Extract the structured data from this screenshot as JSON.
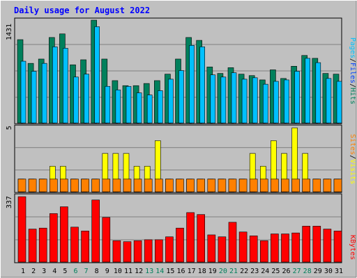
{
  "title": "Daily usage for August 2022",
  "colors": {
    "background": "#c0c0c0",
    "panel": "#c0c0c0",
    "title": "#0000ff",
    "hits": "#008040",
    "hits_fill": "#00805c",
    "files": "#0040ff",
    "files_fill": "#00c0ff",
    "pages": "#00c0ff",
    "visits": "#ffff00",
    "sites": "#ff8000",
    "kbytes": "#ff0000",
    "weekday_label": "#000000",
    "weekend_label": "#00805c",
    "gridline": "#808080"
  },
  "chart_data": [
    {
      "type": "bar",
      "panel": "top",
      "max_label": "1431",
      "ylim": [
        0,
        1431
      ],
      "categories": [
        "1",
        "2",
        "3",
        "4",
        "5",
        "6",
        "7",
        "8",
        "9",
        "10",
        "11",
        "12",
        "13",
        "14",
        "15",
        "16",
        "17",
        "18",
        "19",
        "20",
        "21",
        "22",
        "23",
        "24",
        "25",
        "26",
        "27",
        "28",
        "29",
        "30",
        "31"
      ],
      "weekend_days": [
        6,
        7,
        13,
        14,
        20,
        21,
        27,
        28
      ],
      "legend": {
        "hits": "Hits",
        "files": "Files",
        "pages": "Pages",
        "sep": "/"
      },
      "series": [
        {
          "name": "Hits",
          "values": [
            1160,
            830,
            890,
            1190,
            1240,
            810,
            880,
            1431,
            890,
            590,
            520,
            520,
            550,
            590,
            680,
            890,
            1190,
            1150,
            780,
            690,
            770,
            680,
            660,
            600,
            740,
            620,
            790,
            940,
            900,
            690,
            680
          ]
        },
        {
          "name": "Files",
          "values": [
            860,
            720,
            830,
            1060,
            1040,
            640,
            680,
            1340,
            510,
            460,
            510,
            420,
            390,
            450,
            610,
            730,
            1080,
            1060,
            670,
            640,
            700,
            610,
            630,
            540,
            580,
            600,
            720,
            900,
            840,
            620,
            580
          ]
        },
        {
          "name": "Pages",
          "values": [
            860,
            720,
            830,
            1060,
            1040,
            640,
            680,
            1340,
            510,
            460,
            510,
            420,
            390,
            450,
            610,
            730,
            1080,
            1060,
            670,
            640,
            700,
            610,
            630,
            540,
            580,
            600,
            720,
            900,
            840,
            620,
            580
          ]
        }
      ]
    },
    {
      "type": "bar",
      "panel": "middle",
      "max_label": "5",
      "ylim": [
        0,
        5
      ],
      "categories": [
        "1",
        "2",
        "3",
        "4",
        "5",
        "6",
        "7",
        "8",
        "9",
        "10",
        "11",
        "12",
        "13",
        "14",
        "15",
        "16",
        "17",
        "18",
        "19",
        "20",
        "21",
        "22",
        "23",
        "24",
        "25",
        "26",
        "27",
        "28",
        "29",
        "30",
        "31"
      ],
      "legend": {
        "visits": "Visits",
        "sites": "Sites",
        "sep": "/"
      },
      "series": [
        {
          "name": "Visits",
          "values": [
            1,
            1,
            1,
            2,
            2,
            1,
            1,
            1,
            3,
            3,
            3,
            2,
            2,
            4,
            1,
            1,
            1,
            1,
            1,
            1,
            1,
            1,
            3,
            2,
            4,
            3,
            5,
            3,
            1,
            1,
            1
          ]
        },
        {
          "name": "Sites",
          "values": [
            1,
            1,
            1,
            1,
            1,
            1,
            1,
            1,
            1,
            1,
            1,
            1,
            1,
            1,
            1,
            1,
            1,
            1,
            1,
            1,
            1,
            1,
            1,
            1,
            1,
            1,
            1,
            1,
            1,
            1,
            1
          ]
        }
      ]
    },
    {
      "type": "bar",
      "panel": "bottom",
      "max_label": "337",
      "ylim": [
        0,
        337
      ],
      "categories": [
        "1",
        "2",
        "3",
        "4",
        "5",
        "6",
        "7",
        "8",
        "9",
        "10",
        "11",
        "12",
        "13",
        "14",
        "15",
        "16",
        "17",
        "18",
        "19",
        "20",
        "21",
        "22",
        "23",
        "24",
        "25",
        "26",
        "27",
        "28",
        "29",
        "30",
        "31"
      ],
      "legend": {
        "kbytes": "KBytes"
      },
      "series": [
        {
          "name": "KBytes",
          "values": [
            337,
            170,
            175,
            250,
            285,
            180,
            160,
            320,
            230,
            110,
            105,
            110,
            115,
            115,
            130,
            175,
            255,
            245,
            140,
            130,
            205,
            155,
            135,
            110,
            145,
            145,
            150,
            185,
            185,
            170,
            160
          ]
        }
      ]
    }
  ]
}
